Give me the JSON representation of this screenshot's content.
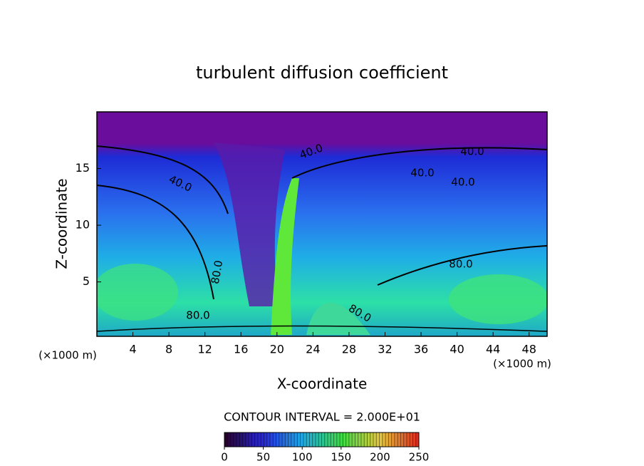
{
  "chart_data": {
    "type": "contour",
    "title": "turbulent diffusion coefficient",
    "x_label": "X-coordinate",
    "y_label": "Z-coordinate",
    "unit_labels": [
      "(×1000 m)",
      "(×1000 m)"
    ],
    "xlim": [
      0,
      50
    ],
    "xticks": [
      4,
      8,
      12,
      16,
      20,
      24,
      28,
      32,
      36,
      40,
      44,
      48
    ],
    "ylim": [
      0.2,
      20
    ],
    "yticks": [
      5,
      10,
      15
    ],
    "contour_labels": [
      {
        "value": 40,
        "label": "40.0"
      },
      {
        "value": 40,
        "label": "40.0"
      },
      {
        "value": 40,
        "label": "40.0"
      },
      {
        "value": 40,
        "label": "40.0"
      },
      {
        "value": 40,
        "label": "40.0"
      },
      {
        "value": 80,
        "label": "80.0"
      },
      {
        "value": 80,
        "label": "80.0"
      },
      {
        "value": 80,
        "label": "80.0"
      },
      {
        "value": 80,
        "label": "80.0"
      }
    ],
    "colorbar": {
      "label": "CONTOUR INTERVAL = 2.000E+01",
      "lim": [
        0,
        250
      ],
      "ticks": [
        0,
        50,
        100,
        150,
        200,
        250
      ]
    }
  }
}
